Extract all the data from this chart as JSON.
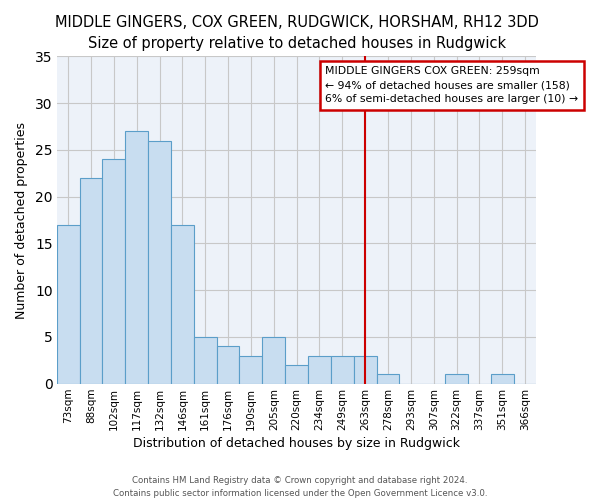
{
  "title": "MIDDLE GINGERS, COX GREEN, RUDGWICK, HORSHAM, RH12 3DD",
  "subtitle": "Size of property relative to detached houses in Rudgwick",
  "xlabel": "Distribution of detached houses by size in Rudgwick",
  "ylabel": "Number of detached properties",
  "categories": [
    "73sqm",
    "88sqm",
    "102sqm",
    "117sqm",
    "132sqm",
    "146sqm",
    "161sqm",
    "176sqm",
    "190sqm",
    "205sqm",
    "220sqm",
    "234sqm",
    "249sqm",
    "263sqm",
    "278sqm",
    "293sqm",
    "307sqm",
    "322sqm",
    "337sqm",
    "351sqm",
    "366sqm"
  ],
  "values": [
    17,
    22,
    24,
    27,
    26,
    17,
    5,
    4,
    3,
    5,
    2,
    3,
    3,
    3,
    1,
    0,
    0,
    1,
    0,
    1,
    0
  ],
  "bar_color": "#c8ddf0",
  "bar_edge_color": "#5b9ec9",
  "vline_x": 13.0,
  "vline_color": "#cc0000",
  "annotation_title": "MIDDLE GINGERS COX GREEN: 259sqm",
  "annotation_line1": "← 94% of detached houses are smaller (158)",
  "annotation_line2": "6% of semi-detached houses are larger (10) →",
  "annotation_box_facecolor": "#ffffff",
  "annotation_box_edgecolor": "#cc0000",
  "ylim": [
    0,
    35
  ],
  "yticks": [
    0,
    5,
    10,
    15,
    20,
    25,
    30,
    35
  ],
  "footer1": "Contains HM Land Registry data © Crown copyright and database right 2024.",
  "footer2": "Contains public sector information licensed under the Open Government Licence v3.0.",
  "fig_bg_color": "#ffffff",
  "plot_bg_color": "#edf2f9",
  "grid_color": "#c8c8c8",
  "title_fontsize": 10.5,
  "subtitle_fontsize": 9,
  "tick_fontsize": 7.5,
  "axis_label_fontsize": 9
}
